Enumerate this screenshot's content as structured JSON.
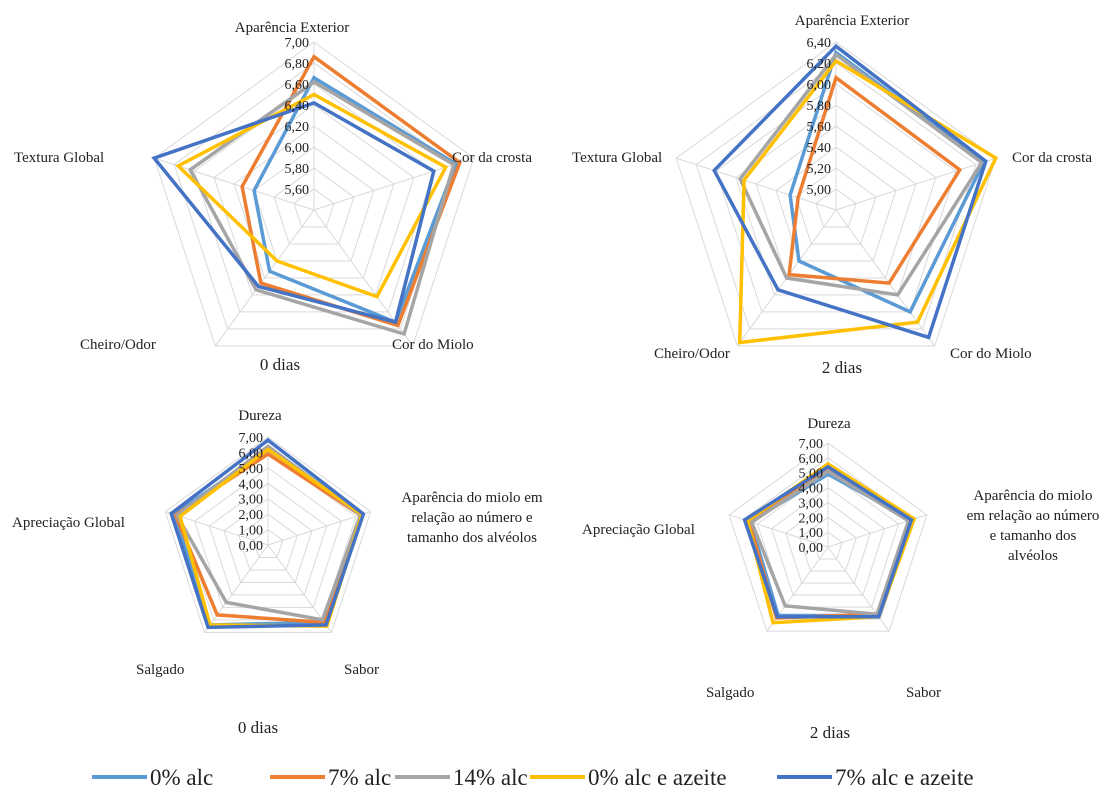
{
  "colors": {
    "0% alc": "#5b9bd5",
    "7% alc": "#ed7d31",
    "14% alc": "#a5a5a5",
    "0% alc e azeite": "#ffc000",
    "7% alc e azeite": "#4472c4"
  },
  "legend": [
    "0% alc",
    "7% alc",
    "14% alc",
    "0% alc e azeite",
    "7% alc e azeite"
  ],
  "chart_data": [
    {
      "type": "radar",
      "caption": "0 dias",
      "categories": [
        "Aparência Exterior",
        "Cor da crosta",
        "Cor do Miolo",
        "Cheiro/Odor",
        "Textura Global"
      ],
      "ticks": [
        "5,60",
        "5,80",
        "6,00",
        "6,20",
        "6,40",
        "6,60",
        "6,80",
        "7,00"
      ],
      "rlim": [
        5.4,
        7.0
      ],
      "series": [
        {
          "name": "0% alc",
          "values": [
            6.66,
            6.82,
            6.72,
            6.12,
            6.0
          ]
        },
        {
          "name": "7% alc",
          "values": [
            6.86,
            6.86,
            6.76,
            6.26,
            6.12
          ]
        },
        {
          "name": "14% alc",
          "values": [
            6.62,
            6.8,
            6.86,
            6.34,
            6.64
          ]
        },
        {
          "name": "0% alc e azeite",
          "values": [
            6.5,
            6.72,
            6.42,
            6.0,
            6.76
          ]
        },
        {
          "name": "7% alc e azeite",
          "values": [
            6.42,
            6.6,
            6.72,
            6.3,
            7.0
          ]
        }
      ]
    },
    {
      "type": "radar",
      "caption": "2 dias",
      "categories": [
        "Aparência Exterior",
        "Cor da crosta",
        "Cor do Miolo",
        "Cheiro/Odor",
        "Textura Global"
      ],
      "ticks": [
        "5,00",
        "5,20",
        "5,40",
        "5,60",
        "5,80",
        "6,00",
        "6,20",
        "6,40"
      ],
      "rlim": [
        4.8,
        6.4
      ],
      "series": [
        {
          "name": "0% alc",
          "values": [
            6.3,
            6.28,
            6.0,
            5.4,
            5.26
          ]
        },
        {
          "name": "7% alc",
          "values": [
            6.06,
            6.04,
            5.66,
            5.56,
            5.18
          ]
        },
        {
          "name": "14% alc",
          "values": [
            6.28,
            6.26,
            5.8,
            5.6,
            5.76
          ]
        },
        {
          "name": "0% alc e azeite",
          "values": [
            6.22,
            6.4,
            6.12,
            6.36,
            5.72
          ]
        },
        {
          "name": "7% alc e azeite",
          "values": [
            6.36,
            6.3,
            6.3,
            5.74,
            6.02
          ]
        }
      ]
    },
    {
      "type": "radar",
      "caption": "0 dias",
      "categories": [
        "Dureza",
        "Aparência do miolo em relação ao número e tamanho dos alvéolos",
        "Sabor",
        "Salgado",
        "Apreciação Global"
      ],
      "ticks": [
        "0,00",
        "1,00",
        "2,00",
        "3,00",
        "4,00",
        "5,00",
        "6,00",
        "7,00"
      ],
      "rlim": [
        0,
        7
      ],
      "series": [
        {
          "name": "0% alc",
          "values": [
            6.2,
            6.4,
            6.2,
            6.4,
            6.4
          ]
        },
        {
          "name": "7% alc",
          "values": [
            5.9,
            6.3,
            6.2,
            5.6,
            6.3
          ]
        },
        {
          "name": "14% alc",
          "values": [
            6.4,
            6.3,
            6.0,
            4.6,
            6.2
          ]
        },
        {
          "name": "0% alc e azeite",
          "values": [
            6.2,
            6.4,
            6.5,
            6.4,
            6.0
          ]
        },
        {
          "name": "7% alc e azeite",
          "values": [
            6.8,
            6.5,
            6.4,
            6.6,
            6.6
          ]
        }
      ]
    },
    {
      "type": "radar",
      "caption": "2 dias",
      "categories": [
        "Dureza",
        "Aparência do miolo em relação ao número e tamanho dos alvéolos",
        "Sabor",
        "Salgado",
        "Apreciação Global"
      ],
      "ticks": [
        "0,00",
        "1,00",
        "2,00",
        "3,00",
        "4,00",
        "5,00",
        "6,00",
        "7,00"
      ],
      "rlim": [
        0,
        7
      ],
      "series": [
        {
          "name": "0% alc",
          "values": [
            4.9,
            5.9,
            5.7,
            5.7,
            5.5
          ]
        },
        {
          "name": "7% alc",
          "values": [
            5.3,
            5.9,
            5.6,
            5.9,
            5.6
          ]
        },
        {
          "name": "14% alc",
          "values": [
            5.1,
            5.7,
            5.6,
            4.9,
            5.4
          ]
        },
        {
          "name": "0% alc e azeite",
          "values": [
            5.6,
            6.1,
            5.8,
            6.3,
            5.7
          ]
        },
        {
          "name": "7% alc e azeite",
          "values": [
            5.4,
            5.9,
            5.8,
            5.8,
            5.9
          ]
        }
      ]
    }
  ]
}
